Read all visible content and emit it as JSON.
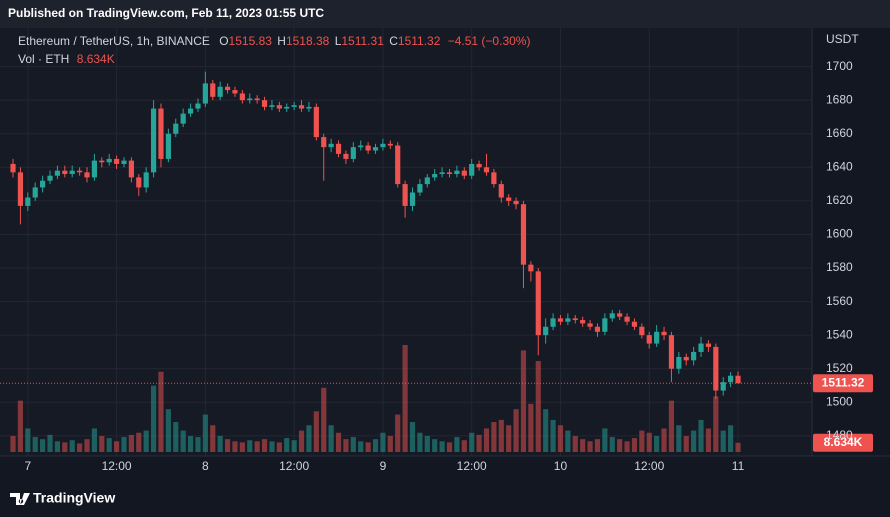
{
  "header": {
    "published": "Published on TradingView.com, Feb 11, 2023 01:55 UTC"
  },
  "chart_data": {
    "type": "candlestick",
    "symbol": "Ethereum / TetherUS, 1h, BINANCE",
    "ohlc_prefixes": [
      "O",
      "H",
      "L",
      "C"
    ],
    "change_label": "−4.51 (−0.30%)",
    "volume_name": "Vol · ETH",
    "volume_last_label": "8.634K",
    "y_axis_label": "USDT",
    "up_color": "#26a69a",
    "down_color": "#ef5350",
    "open": [
      1642,
      1637,
      1617,
      1622,
      1628,
      1632,
      1635,
      1638,
      1636,
      1638,
      1637,
      1634,
      1644,
      1643,
      1645,
      1642,
      1644,
      1634,
      1628,
      1637,
      1675,
      1645,
      1660,
      1666,
      1672,
      1675,
      1678,
      1690,
      1682,
      1688,
      1686,
      1684,
      1680,
      1681,
      1680,
      1676,
      1677,
      1675,
      1676,
      1677,
      1675,
      1676,
      1658,
      1652,
      1654,
      1648,
      1645,
      1652,
      1653,
      1650,
      1652,
      1654,
      1653,
      1630,
      1617,
      1625,
      1630,
      1634,
      1636,
      1637,
      1636,
      1638,
      1635,
      1642,
      1640,
      1637,
      1630,
      1622,
      1620,
      1618,
      1582,
      1578,
      1540,
      1545,
      1550,
      1548,
      1550,
      1549,
      1547,
      1545,
      1542,
      1550,
      1553,
      1551,
      1548,
      1545,
      1540,
      1535,
      1542,
      1540,
      1520,
      1527,
      1525,
      1530,
      1535,
      1533,
      1507,
      1512,
      1515.83
    ],
    "high": [
      1645,
      1640,
      1625,
      1631,
      1635,
      1638,
      1641,
      1641,
      1641,
      1640,
      1640,
      1648,
      1646,
      1648,
      1647,
      1646,
      1646,
      1636,
      1640,
      1680,
      1678,
      1663,
      1669,
      1675,
      1678,
      1681,
      1697,
      1692,
      1691,
      1690,
      1688,
      1686,
      1684,
      1683,
      1682,
      1680,
      1679,
      1678,
      1679,
      1680,
      1679,
      1678,
      1660,
      1657,
      1656,
      1650,
      1655,
      1656,
      1655,
      1654,
      1657,
      1656,
      1655,
      1632,
      1628,
      1633,
      1636,
      1639,
      1640,
      1639,
      1641,
      1640,
      1645,
      1644,
      1648,
      1639,
      1632,
      1624,
      1622,
      1620,
      1584,
      1580,
      1550,
      1553,
      1552,
      1553,
      1552,
      1551,
      1549,
      1547,
      1553,
      1555,
      1555,
      1553,
      1550,
      1547,
      1542,
      1546,
      1545,
      1542,
      1530,
      1529,
      1533,
      1539,
      1537,
      1535,
      1515,
      1518,
      1518.38
    ],
    "low": [
      1634,
      1606,
      1614,
      1620,
      1625,
      1630,
      1633,
      1634,
      1634,
      1635,
      1631,
      1632,
      1640,
      1641,
      1639,
      1640,
      1631,
      1623,
      1625,
      1634,
      1640,
      1643,
      1658,
      1664,
      1670,
      1673,
      1676,
      1680,
      1680,
      1684,
      1682,
      1678,
      1678,
      1678,
      1674,
      1674,
      1673,
      1673,
      1674,
      1673,
      1673,
      1656,
      1632,
      1649,
      1646,
      1642,
      1643,
      1650,
      1648,
      1648,
      1650,
      1651,
      1628,
      1610,
      1614,
      1623,
      1628,
      1632,
      1634,
      1634,
      1634,
      1633,
      1633,
      1638,
      1635,
      1628,
      1619,
      1617,
      1615,
      1568,
      1572,
      1528,
      1535,
      1543,
      1546,
      1546,
      1547,
      1545,
      1543,
      1539,
      1540,
      1548,
      1549,
      1546,
      1543,
      1538,
      1532,
      1533,
      1537,
      1512,
      1517,
      1522,
      1522,
      1527,
      1530,
      1502,
      1504,
      1509,
      1511.31
    ],
    "close": [
      1637,
      1617,
      1622,
      1628,
      1632,
      1635,
      1638,
      1636,
      1638,
      1637,
      1634,
      1644,
      1643,
      1645,
      1642,
      1644,
      1634,
      1628,
      1637,
      1675,
      1645,
      1660,
      1666,
      1672,
      1675,
      1678,
      1690,
      1682,
      1688,
      1686,
      1684,
      1680,
      1681,
      1680,
      1676,
      1677,
      1675,
      1676,
      1677,
      1675,
      1676,
      1658,
      1652,
      1654,
      1648,
      1645,
      1652,
      1653,
      1650,
      1652,
      1654,
      1653,
      1630,
      1617,
      1625,
      1630,
      1634,
      1636,
      1637,
      1636,
      1638,
      1635,
      1642,
      1640,
      1637,
      1630,
      1622,
      1620,
      1618,
      1582,
      1578,
      1540,
      1545,
      1550,
      1548,
      1550,
      1549,
      1547,
      1545,
      1542,
      1550,
      1553,
      1551,
      1548,
      1545,
      1540,
      1535,
      1542,
      1540,
      1520,
      1527,
      1525,
      1530,
      1535,
      1533,
      1507,
      1512,
      1515.83,
      1511.32
    ],
    "volume": [
      15000,
      48000,
      22000,
      14000,
      12000,
      16000,
      10000,
      9000,
      11000,
      8000,
      12000,
      22000,
      15000,
      13000,
      10000,
      14000,
      16000,
      18000,
      20000,
      62000,
      75000,
      40000,
      28000,
      20000,
      15000,
      14000,
      35000,
      25000,
      15000,
      12000,
      10000,
      9000,
      11000,
      10000,
      12000,
      10000,
      9000,
      13000,
      11000,
      20000,
      25000,
      38000,
      60000,
      25000,
      18000,
      12000,
      14000,
      10000,
      9000,
      12000,
      18000,
      15000,
      35000,
      100000,
      28000,
      18000,
      15000,
      12000,
      10000,
      9000,
      14000,
      11000,
      18000,
      16000,
      22000,
      28000,
      30000,
      25000,
      40000,
      95000,
      45000,
      85000,
      40000,
      30000,
      25000,
      20000,
      15000,
      12000,
      10000,
      12000,
      22000,
      14000,
      12000,
      10000,
      13000,
      20000,
      18000,
      15000,
      22000,
      48000,
      25000,
      15000,
      20000,
      30000,
      22000,
      52000,
      20000,
      25000,
      8634
    ],
    "ylim": [
      1468,
      1723
    ],
    "yticks": [
      1480,
      1500,
      1520,
      1540,
      1560,
      1580,
      1600,
      1620,
      1640,
      1660,
      1680,
      1700
    ],
    "xlim": [
      -1.76,
      108
    ],
    "xticks": [
      {
        "value": 2,
        "label": "7"
      },
      {
        "value": 14,
        "label": "12:00"
      },
      {
        "value": 26,
        "label": "8"
      },
      {
        "value": 38,
        "label": "12:00"
      },
      {
        "value": 50,
        "label": "9"
      },
      {
        "value": 62,
        "label": "12:00"
      },
      {
        "value": 74,
        "label": "10"
      },
      {
        "value": 86,
        "label": "12:00"
      },
      {
        "value": 98,
        "label": "11"
      }
    ],
    "grid": true
  },
  "footer": {
    "brand": "TradingView"
  }
}
